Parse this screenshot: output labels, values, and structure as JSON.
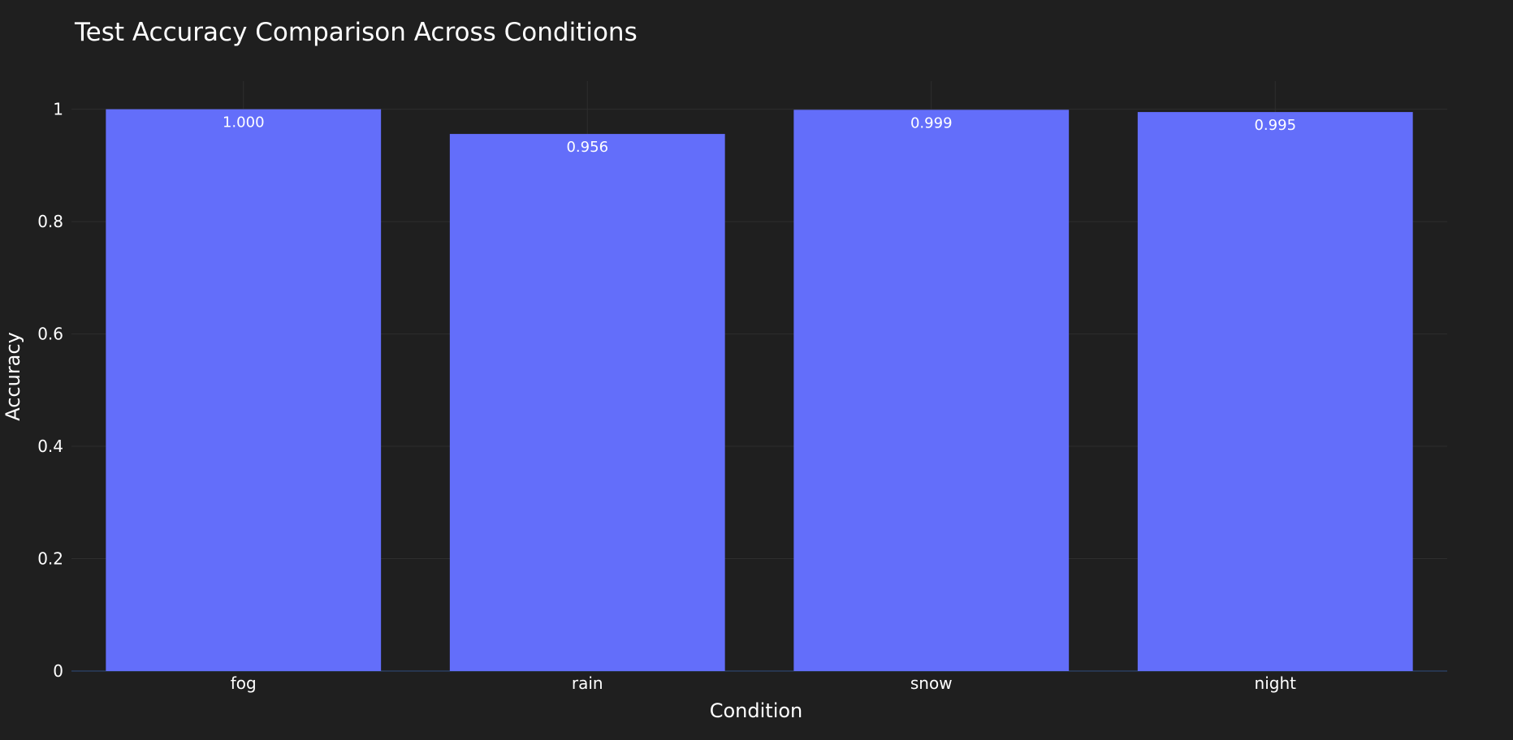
{
  "chart_data": {
    "type": "bar",
    "title": "Test Accuracy Comparison Across Conditions",
    "xlabel": "Condition",
    "ylabel": "Accuracy",
    "categories": [
      "fog",
      "rain",
      "snow",
      "night"
    ],
    "values": [
      1.0,
      0.956,
      0.999,
      0.995
    ],
    "data_labels": [
      "1.000",
      "0.956",
      "0.999",
      "0.995"
    ],
    "ylim": [
      0,
      1.05
    ],
    "yticks": [
      0,
      0.2,
      0.4,
      0.6,
      0.8,
      1
    ],
    "ytick_labels": [
      "0",
      "0.2",
      "0.4",
      "0.6",
      "0.8",
      "1"
    ],
    "grid": true,
    "legend": "none"
  },
  "colors": {
    "background": "#1f1f1f",
    "bar": "#636efa",
    "grid": "#2e2e2e",
    "zero_line": "#2a3f5f",
    "text": "#ffffff"
  }
}
